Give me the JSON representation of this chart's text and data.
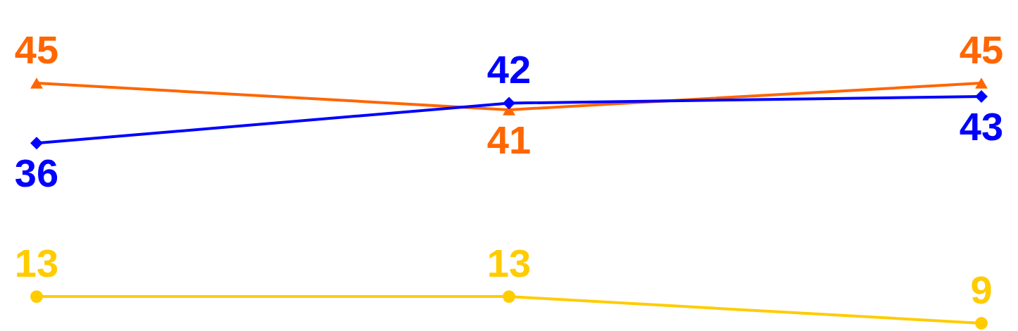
{
  "chart_data": {
    "type": "line",
    "categories": [
      null,
      null,
      null
    ],
    "data_labels": true,
    "line_style": "solid",
    "series": [
      {
        "color": "#ff6600",
        "marker": "triangle",
        "values": [
          45,
          41,
          45
        ]
      },
      {
        "color": "#0000ff",
        "marker": "diamond",
        "values": [
          36,
          42,
          43
        ]
      },
      {
        "color": "#ffcc00",
        "marker": "circle",
        "values": [
          13,
          13,
          9
        ]
      }
    ]
  }
}
